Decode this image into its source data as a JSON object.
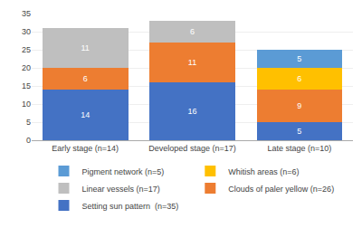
{
  "chart_data": {
    "type": "bar",
    "stacked": true,
    "categories": [
      "Early stage (n=14)",
      "Developed stage (n=17)",
      "Late stage (n=10)"
    ],
    "series": [
      {
        "name": "Setting sun pattern  (n=35)",
        "color": "#4472C4",
        "values": [
          14,
          16,
          5
        ]
      },
      {
        "name": "Clouds of paler yellow (n=26)",
        "color": "#ED7D31",
        "values": [
          6,
          11,
          9
        ]
      },
      {
        "name": "Linear vessels (n=17)",
        "color": "#BFBFBF",
        "values": [
          11,
          6,
          0
        ]
      },
      {
        "name": "Whitish areas (n=6)",
        "color": "#FFC000",
        "values": [
          0,
          0,
          6
        ]
      },
      {
        "name": "Pigment network (n=5)",
        "color": "#5B9BD5",
        "values": [
          0,
          0,
          5
        ]
      }
    ],
    "ylim": [
      0,
      35
    ],
    "yticks": [
      0,
      5,
      10,
      15,
      20,
      25,
      30,
      35
    ],
    "grid": true,
    "legend": "bottom",
    "data_labels": true
  }
}
